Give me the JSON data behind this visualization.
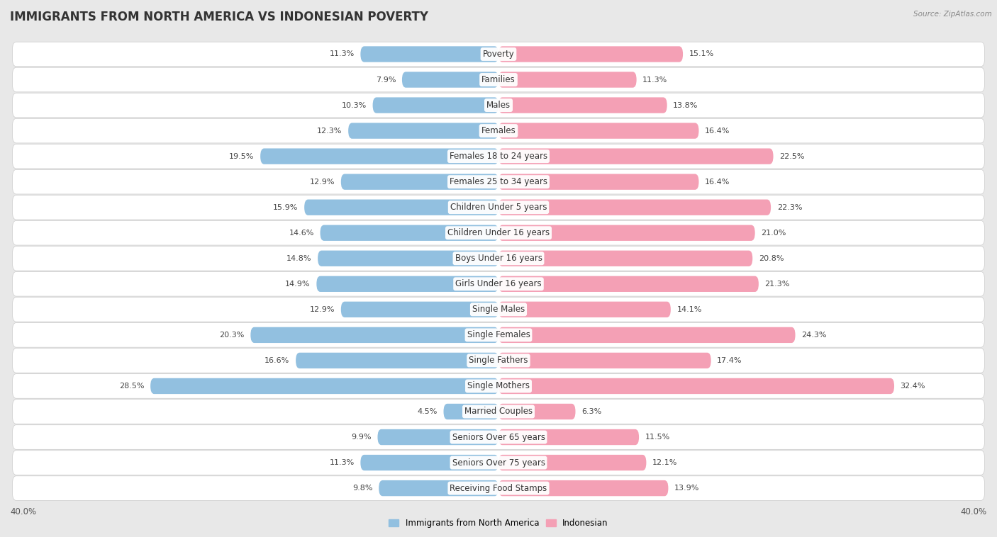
{
  "title": "IMMIGRANTS FROM NORTH AMERICA VS INDONESIAN POVERTY",
  "source": "Source: ZipAtlas.com",
  "categories": [
    "Poverty",
    "Families",
    "Males",
    "Females",
    "Females 18 to 24 years",
    "Females 25 to 34 years",
    "Children Under 5 years",
    "Children Under 16 years",
    "Boys Under 16 years",
    "Girls Under 16 years",
    "Single Males",
    "Single Females",
    "Single Fathers",
    "Single Mothers",
    "Married Couples",
    "Seniors Over 65 years",
    "Seniors Over 75 years",
    "Receiving Food Stamps"
  ],
  "left_values": [
    11.3,
    7.9,
    10.3,
    12.3,
    19.5,
    12.9,
    15.9,
    14.6,
    14.8,
    14.9,
    12.9,
    20.3,
    16.6,
    28.5,
    4.5,
    9.9,
    11.3,
    9.8
  ],
  "right_values": [
    15.1,
    11.3,
    13.8,
    16.4,
    22.5,
    16.4,
    22.3,
    21.0,
    20.8,
    21.3,
    14.1,
    24.3,
    17.4,
    32.4,
    6.3,
    11.5,
    12.1,
    13.9
  ],
  "left_color": "#92c0e0",
  "right_color": "#f4a0b5",
  "axis_max": 40.0,
  "axis_label": "40.0%",
  "legend_left": "Immigrants from North America",
  "legend_right": "Indonesian",
  "background_color": "#e8e8e8",
  "row_bg_color": "#ffffff",
  "title_fontsize": 12,
  "label_fontsize": 8.5,
  "value_fontsize": 8
}
